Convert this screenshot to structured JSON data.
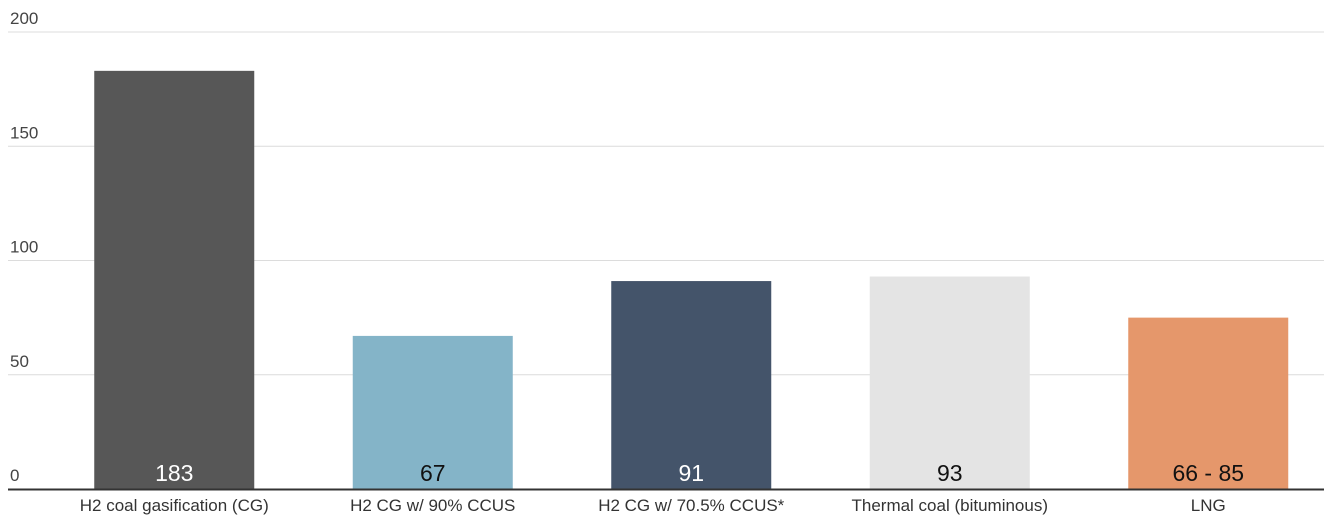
{
  "chart_data": {
    "type": "bar",
    "title": "",
    "xlabel": "",
    "ylabel": "",
    "ylim": [
      0,
      200
    ],
    "yticks": [
      0,
      50,
      100,
      150,
      200
    ],
    "grid": true,
    "legend": "none",
    "categories": [
      "H2 coal gasification (CG)",
      "H2 CG w/ 90% CCUS",
      "H2 CG w/ 70.5% CCUS*",
      "Thermal coal (bituminous)",
      "LNG"
    ],
    "values": [
      183,
      67,
      91,
      93,
      75
    ],
    "value_labels": [
      "183",
      "67",
      "91",
      "93",
      "66 - 85"
    ],
    "colors": [
      "#575757",
      "#84b4c8",
      "#44546a",
      "#e4e4e4",
      "#e5976b"
    ],
    "value_label_colors": [
      "#ffffff",
      "#111111",
      "#ffffff",
      "#111111",
      "#111111"
    ],
    "grid_color": "#dcdcdc",
    "axis_color": "#333333"
  }
}
